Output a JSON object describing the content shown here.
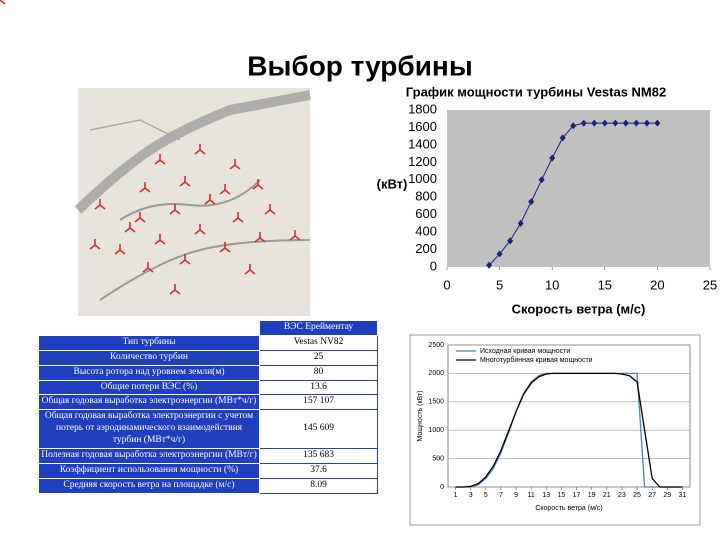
{
  "title": "Выбор турбины",
  "chart_data": [
    {
      "type": "line",
      "title": "График мощности турбины Vestas NM82",
      "ylabel": "(кВт)",
      "xlabel": "Скорость ветра (м/с)",
      "x": [
        4,
        5,
        6,
        7,
        8,
        9,
        10,
        11,
        12,
        13,
        14,
        15,
        16,
        17,
        18,
        19,
        20
      ],
      "series": [
        {
          "color": "#1a237e",
          "values": [
            20,
            150,
            300,
            500,
            750,
            1000,
            1250,
            1480,
            1620,
            1650,
            1650,
            1650,
            1650,
            1650,
            1650,
            1650,
            1650
          ]
        }
      ],
      "xlim": [
        0,
        25
      ],
      "xticks": [
        0,
        5,
        10,
        15,
        20,
        25
      ],
      "ylim": [
        0,
        1800
      ],
      "yticks": [
        0,
        200,
        400,
        600,
        800,
        1000,
        1200,
        1400,
        1600,
        1800
      ],
      "markers": true,
      "grid": false,
      "background": "#c0c0c0"
    },
    {
      "type": "line",
      "ylabel": "Мощность (кВт)",
      "xlabel": "Скорость ветра (м/с)",
      "x": [
        1,
        2,
        3,
        4,
        5,
        6,
        7,
        8,
        9,
        10,
        11,
        12,
        13,
        14,
        15,
        16,
        17,
        18,
        19,
        20,
        21,
        22,
        23,
        24,
        25,
        26,
        27,
        28,
        29,
        30,
        31
      ],
      "series": [
        {
          "name": "Исходная кривая мощности",
          "color": "#4f81bd",
          "values": [
            0,
            0,
            0,
            40,
            150,
            330,
            600,
            950,
            1330,
            1650,
            1850,
            1960,
            2000,
            2000,
            2000,
            2000,
            2000,
            2000,
            2000,
            2000,
            2000,
            2000,
            2000,
            2000,
            2000,
            0,
            0,
            0,
            0,
            0,
            0
          ]
        },
        {
          "name": "Многотурбинная кривая мощности",
          "color": "#000000",
          "values": [
            0,
            0,
            10,
            60,
            180,
            370,
            640,
            980,
            1330,
            1630,
            1830,
            1940,
            1990,
            2000,
            2000,
            2000,
            2000,
            2000,
            2000,
            2000,
            2000,
            2000,
            1990,
            1960,
            1850,
            1000,
            150,
            0,
            0,
            0,
            0
          ]
        }
      ],
      "xlim": [
        0,
        32
      ],
      "xticks": [
        1,
        3,
        5,
        7,
        9,
        11,
        13,
        15,
        17,
        19,
        21,
        23,
        25,
        27,
        29,
        31
      ],
      "ylim": [
        0,
        2500
      ],
      "yticks": [
        0,
        500,
        1000,
        1500,
        2000,
        2500
      ],
      "markers": false,
      "grid": true,
      "legend": "top-left",
      "background": "#ffffff"
    }
  ],
  "table": {
    "header": "ВЭС Ерейментау",
    "rows": [
      [
        "Тип турбины",
        "Vestas NV82"
      ],
      [
        "Количество турбин",
        "25"
      ],
      [
        "Высота ротора над уровнем земли(м)",
        "80"
      ],
      [
        "Общие потери ВЭС (%)",
        "13.6"
      ],
      [
        "Общая годовая выработка электроэнергии (МВт*ч/г)",
        "157 107"
      ],
      [
        "Общая годовая выработка электроэнергии с учетом потерь от аэродинамического взаимодействия турбин (МВт*ч/г)",
        "145 609"
      ],
      [
        "Полезная годовая выработка электроэнергии (МВт/г)",
        "135 683"
      ],
      [
        "Коэффициент использования мощности (%)",
        "37.6"
      ],
      [
        "Средняя скорость ветра на площадке (м/с)",
        "8.09"
      ]
    ]
  }
}
